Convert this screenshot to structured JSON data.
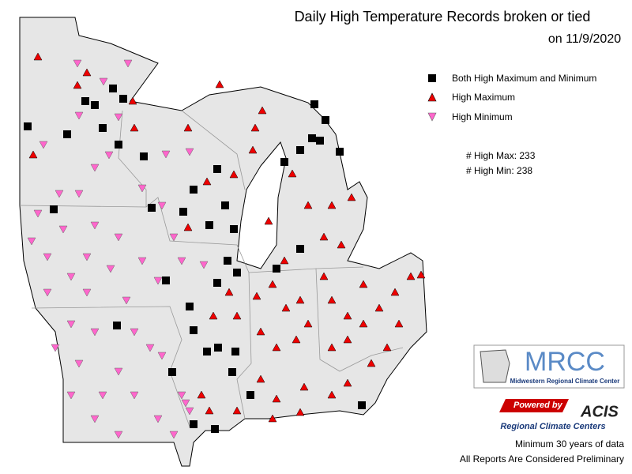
{
  "header": {
    "title": "Daily High Temperature Records broken or tied",
    "date": "on 11/9/2020"
  },
  "legend": {
    "items": [
      "Both High Maximum and Minimum",
      "High Maximum",
      "High Minimum"
    ]
  },
  "counts": {
    "high_max": "# High Max: 233",
    "high_min": "# High Min: 238"
  },
  "logos": {
    "mrcc": "MRCC",
    "mrcc_name": "Midwestern Regional Climate Center",
    "powered": "Powered by",
    "acis": "ACIS",
    "rcc": "Regional Climate Centers"
  },
  "notes": [
    "Minimum 30 years of data",
    "All Reports Are Considered Preliminary"
  ]
}
